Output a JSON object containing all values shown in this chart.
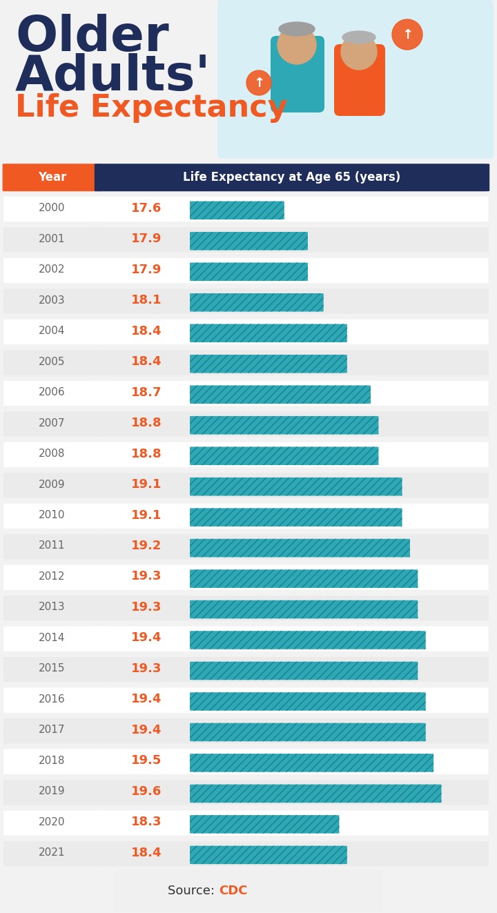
{
  "title_line1": "Older",
  "title_line2": "Adults'",
  "title_line3": "Life Expectancy",
  "col_header_year": "Year",
  "col_header_value": "Life Expectancy at Age 65 (years)",
  "source_text": "Source: ",
  "source_highlight": "CDC",
  "years": [
    2000,
    2001,
    2002,
    2003,
    2004,
    2005,
    2006,
    2007,
    2008,
    2009,
    2010,
    2011,
    2012,
    2013,
    2014,
    2015,
    2016,
    2017,
    2018,
    2019,
    2020,
    2021
  ],
  "values": [
    17.6,
    17.9,
    17.9,
    18.1,
    18.4,
    18.4,
    18.7,
    18.8,
    18.8,
    19.1,
    19.1,
    19.2,
    19.3,
    19.3,
    19.4,
    19.3,
    19.4,
    19.4,
    19.5,
    19.6,
    18.3,
    18.4
  ],
  "bar_color": "#2da8b4",
  "bar_hatch_color": "#1a8a96",
  "bg_color": "#f2f2f2",
  "row_bg_odd": "#ffffff",
  "row_bg_even": "#ebebeb",
  "header_year_bg": "#f05a22",
  "header_value_bg": "#1e2d5a",
  "header_text_color": "#ffffff",
  "year_text_color": "#666666",
  "value_text_color": "#f05a22",
  "title_color1": "#1e2d5a",
  "title_color2": "#f05a22",
  "footer_bg": "#1e2d5a",
  "source_box_bg": "#f0f0f0",
  "source_text_color": "#333333",
  "source_highlight_color": "#f05a22",
  "top_bg": "#e8f6f8",
  "bar_min": 16.5,
  "bar_max": 20.2
}
